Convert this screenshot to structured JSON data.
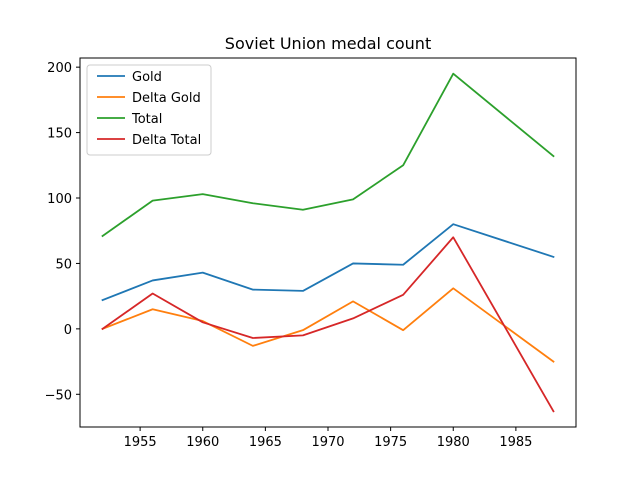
{
  "chart_data": {
    "type": "line",
    "title": "Soviet Union medal count",
    "xlabel": "",
    "ylabel": "",
    "x": [
      1952,
      1956,
      1960,
      1964,
      1968,
      1972,
      1976,
      1980,
      1988
    ],
    "xlim": [
      1950.2,
      1989.8
    ],
    "ylim": [
      -75,
      207
    ],
    "xticks": [
      1955,
      1960,
      1965,
      1970,
      1975,
      1980,
      1985
    ],
    "yticks": [
      -50,
      0,
      50,
      100,
      150,
      200
    ],
    "xtick_labels": [
      "1955",
      "1960",
      "1965",
      "1970",
      "1975",
      "1980",
      "1985"
    ],
    "ytick_labels": [
      "−50",
      "0",
      "50",
      "100",
      "150",
      "200"
    ],
    "grid": false,
    "legend_position": "upper-left",
    "series": [
      {
        "name": "Gold",
        "color": "#1f77b4",
        "values": [
          22,
          37,
          43,
          30,
          29,
          50,
          49,
          80,
          55
        ]
      },
      {
        "name": "Delta Gold",
        "color": "#ff7f0e",
        "values": [
          0,
          15,
          6,
          -13,
          -1,
          21,
          -1,
          31,
          -25
        ]
      },
      {
        "name": "Total",
        "color": "#2ca02c",
        "values": [
          71,
          98,
          103,
          96,
          91,
          99,
          125,
          195,
          132
        ]
      },
      {
        "name": "Delta Total",
        "color": "#d62728",
        "values": [
          0,
          27,
          5,
          -7,
          -5,
          8,
          26,
          70,
          -63
        ]
      }
    ]
  }
}
